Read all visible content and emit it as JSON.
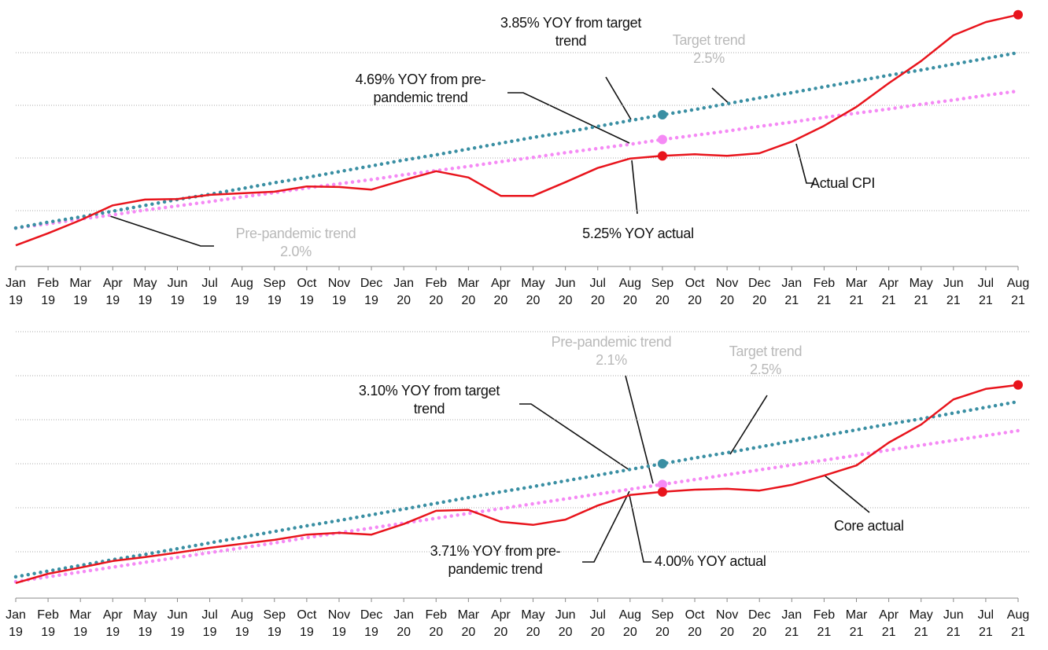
{
  "chart_data": [
    {
      "type": "line",
      "categories": [
        "Jan 19",
        "Feb 19",
        "Mar 19",
        "Apr 19",
        "May 19",
        "Jun 19",
        "Jul 19",
        "Aug 19",
        "Sep 19",
        "Oct 19",
        "Nov 19",
        "Dec 19",
        "Jan 20",
        "Feb 20",
        "Mar 20",
        "Apr 20",
        "May 20",
        "Jun 20",
        "Jul 20",
        "Aug 20",
        "Sep 20",
        "Oct 20",
        "Nov 20",
        "Dec 20",
        "Jan 21",
        "Feb 21",
        "Mar 21",
        "Apr 21",
        "May 21",
        "Jun 21",
        "Jul 21",
        "Aug 21"
      ],
      "ylim": [
        0,
        5
      ],
      "yticks": [
        1,
        2,
        3,
        4
      ],
      "grid": true,
      "series": [
        {
          "name": "Actual CPI",
          "color": "#e8141c",
          "style": "solid",
          "values": [
            0.34,
            0.57,
            0.82,
            1.1,
            1.21,
            1.22,
            1.3,
            1.33,
            1.36,
            1.46,
            1.45,
            1.4,
            1.58,
            1.75,
            1.63,
            1.28,
            1.28,
            1.54,
            1.81,
            1.99,
            2.04,
            2.07,
            2.04,
            2.09,
            2.31,
            2.61,
            2.97,
            3.42,
            3.84,
            4.33,
            4.58,
            4.72
          ]
        },
        {
          "name": "Target trend",
          "rate": "2.5%",
          "color": "#3a8fa3",
          "style": "dotted",
          "values": [
            0.67,
            0.78,
            0.88,
            0.99,
            1.1,
            1.21,
            1.31,
            1.42,
            1.53,
            1.63,
            1.74,
            1.85,
            1.96,
            2.06,
            2.17,
            2.28,
            2.39,
            2.49,
            2.6,
            2.71,
            2.82,
            2.92,
            3.03,
            3.14,
            3.24,
            3.35,
            3.46,
            3.57,
            3.67,
            3.78,
            3.89,
            4.0
          ]
        },
        {
          "name": "Pre-pandemic trend",
          "rate": "2.0%",
          "color": "#f58af5",
          "style": "dotted",
          "values": [
            0.67,
            0.75,
            0.84,
            0.92,
            1.01,
            1.09,
            1.17,
            1.26,
            1.34,
            1.43,
            1.51,
            1.59,
            1.68,
            1.76,
            1.84,
            1.93,
            2.01,
            2.1,
            2.18,
            2.26,
            2.35,
            2.43,
            2.51,
            2.6,
            2.68,
            2.77,
            2.85,
            2.93,
            3.02,
            3.1,
            3.19,
            3.27
          ]
        }
      ],
      "annotations": [
        "3.85% YOY from target trend",
        "4.69% YOY from pre-pandemic trend",
        "5.25% YOY actual"
      ]
    },
    {
      "type": "line",
      "categories": [
        "Jan 19",
        "Feb 19",
        "Mar 19",
        "Apr 19",
        "May 19",
        "Jun 19",
        "Jul 19",
        "Aug 19",
        "Sep 19",
        "Oct 19",
        "Nov 19",
        "Dec 19",
        "Jan 20",
        "Feb 20",
        "Mar 20",
        "Apr 20",
        "May 20",
        "Jun 20",
        "Jul 20",
        "Aug 20",
        "Sep 20",
        "Oct 20",
        "Nov 20",
        "Dec 20",
        "Jan 21",
        "Feb 21",
        "Mar 21",
        "Apr 21",
        "May 21",
        "Jun 21",
        "Jul 21",
        "Aug 21"
      ],
      "ylim": [
        0,
        6
      ],
      "yticks": [
        1,
        2,
        3,
        4,
        5,
        6
      ],
      "grid": true,
      "series": [
        {
          "name": "Core actual",
          "color": "#e8141c",
          "style": "solid",
          "values": [
            0.29,
            0.5,
            0.64,
            0.79,
            0.88,
            0.98,
            1.09,
            1.18,
            1.27,
            1.39,
            1.43,
            1.39,
            1.63,
            1.93,
            1.95,
            1.68,
            1.61,
            1.73,
            2.05,
            2.29,
            2.36,
            2.41,
            2.43,
            2.39,
            2.52,
            2.73,
            2.96,
            3.48,
            3.89,
            4.46,
            4.7,
            4.79
          ]
        },
        {
          "name": "Target trend",
          "rate": "2.5%",
          "color": "#3a8fa3",
          "style": "dotted",
          "values": [
            0.43,
            0.56,
            0.69,
            0.82,
            0.94,
            1.07,
            1.2,
            1.33,
            1.46,
            1.59,
            1.71,
            1.84,
            1.97,
            2.1,
            2.23,
            2.36,
            2.48,
            2.61,
            2.74,
            2.87,
            3.0,
            3.13,
            3.25,
            3.38,
            3.51,
            3.64,
            3.77,
            3.9,
            4.02,
            4.15,
            4.28,
            4.41
          ]
        },
        {
          "name": "Pre-pandemic trend",
          "rate": "2.1%",
          "color": "#f58af5",
          "style": "dotted",
          "values": [
            0.32,
            0.43,
            0.54,
            0.65,
            0.76,
            0.87,
            0.98,
            1.09,
            1.2,
            1.32,
            1.43,
            1.54,
            1.65,
            1.76,
            1.87,
            1.98,
            2.09,
            2.2,
            2.31,
            2.42,
            2.53,
            2.64,
            2.75,
            2.86,
            2.97,
            3.08,
            3.19,
            3.31,
            3.42,
            3.53,
            3.64,
            3.75
          ]
        }
      ],
      "annotations": [
        "3.10% YOY from target trend",
        "3.71% YOY from pre-pandemic trend",
        "4.00% YOY actual"
      ]
    }
  ]
}
